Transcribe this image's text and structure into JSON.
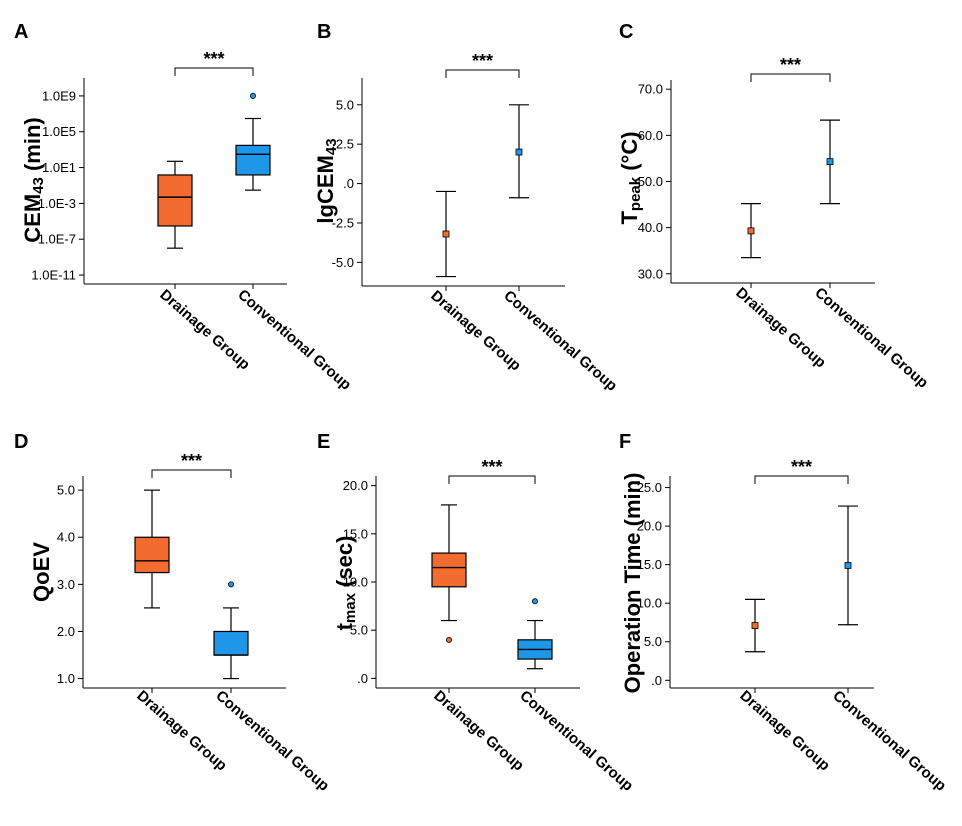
{
  "colors": {
    "drainage": "#f26b2f",
    "conventional": "#1f97e8",
    "axis": "#000000"
  },
  "chart_data": [
    {
      "panel": "A",
      "type": "box",
      "ylabel_main": "CEM",
      "ylabel_sub": "43",
      "ylabel_after": " (min)",
      "yscale": "log10",
      "ylim_exp": [
        -12,
        11
      ],
      "yticks": [
        {
          "exp": 9,
          "label": "1.0E9"
        },
        {
          "exp": 5,
          "label": "1.0E5"
        },
        {
          "exp": 1,
          "label": "1.0E1"
        },
        {
          "exp": -3,
          "label": "1.0E-3"
        },
        {
          "exp": -7,
          "label": "1.0E-7"
        },
        {
          "exp": -11,
          "label": "1.0E-11"
        }
      ],
      "categories": [
        "Drainage Group",
        "Conventional Group"
      ],
      "significance": "***",
      "boxes": [
        {
          "whisker_low": 1e-08,
          "q1": 3e-06,
          "median": 0.005,
          "q3": 1.5,
          "whisker_high": 50.0,
          "outliers": []
        },
        {
          "whisker_low": 0.03,
          "q1": 1.5,
          "median": 300.0,
          "q3": 3000.0,
          "whisker_high": 3000000.0,
          "outliers": [
            1000000000.0
          ]
        }
      ]
    },
    {
      "panel": "B",
      "type": "errorbar",
      "ylabel_main": "lgCEM",
      "ylabel_sub": "43",
      "ylabel_after": "",
      "yscale": "linear",
      "ylim": [
        -6.5,
        6.7
      ],
      "yticks": [
        {
          "value": 5,
          "label": "5.0"
        },
        {
          "value": 2.5,
          "label": "2.5"
        },
        {
          "value": 0,
          "label": ".0"
        },
        {
          "value": -2.5,
          "label": "-2.5"
        },
        {
          "value": -5,
          "label": "-5.0"
        }
      ],
      "categories": [
        "Drainage Group",
        "Conventional Group"
      ],
      "significance": "***",
      "points": [
        {
          "mean": -3.2,
          "low": -5.9,
          "high": -0.5
        },
        {
          "mean": 2.0,
          "low": -0.9,
          "high": 5.0
        }
      ]
    },
    {
      "panel": "C",
      "type": "errorbar",
      "ylabel_main": "T",
      "ylabel_sub": "peak",
      "ylabel_after": " (°C)",
      "yscale": "linear",
      "ylim": [
        28,
        72
      ],
      "yticks": [
        {
          "value": 70,
          "label": "70.0"
        },
        {
          "value": 60,
          "label": "60.0"
        },
        {
          "value": 50,
          "label": "50.0"
        },
        {
          "value": 40,
          "label": "40.0"
        },
        {
          "value": 30,
          "label": "30.0"
        }
      ],
      "categories": [
        "Drainage Group",
        "Conventional Group"
      ],
      "significance": "***",
      "points": [
        {
          "mean": 39.3,
          "low": 33.5,
          "high": 45.2
        },
        {
          "mean": 54.3,
          "low": 45.2,
          "high": 63.3
        }
      ]
    },
    {
      "panel": "D",
      "type": "box",
      "ylabel_main": "QoEV",
      "ylabel_sub": "",
      "ylabel_after": "",
      "yscale": "linear",
      "ylim": [
        0.8,
        5.3
      ],
      "yticks": [
        {
          "value": 5,
          "label": "5.0"
        },
        {
          "value": 4,
          "label": "4.0"
        },
        {
          "value": 3,
          "label": "3.0"
        },
        {
          "value": 2,
          "label": "2.0"
        },
        {
          "value": 1,
          "label": "1.0"
        }
      ],
      "categories": [
        "Drainage Group",
        "Conventional Group"
      ],
      "significance": "***",
      "boxes": [
        {
          "whisker_low": 2.5,
          "q1": 3.25,
          "median": 3.5,
          "q3": 4.0,
          "whisker_high": 5.0,
          "outliers": []
        },
        {
          "whisker_low": 1.0,
          "q1": 1.5,
          "median": 1.5,
          "q3": 2.0,
          "whisker_high": 2.5,
          "outliers": [
            3.0
          ]
        }
      ]
    },
    {
      "panel": "E",
      "type": "box",
      "ylabel_main": "t",
      "ylabel_sub": "max",
      "ylabel_after": " (sec)",
      "yscale": "linear",
      "ylim": [
        -1,
        21
      ],
      "yticks": [
        {
          "value": 20,
          "label": "20.0"
        },
        {
          "value": 15,
          "label": "15.0"
        },
        {
          "value": 10,
          "label": "10.0"
        },
        {
          "value": 5,
          "label": "5.0"
        },
        {
          "value": 0,
          "label": ".0"
        }
      ],
      "categories": [
        "Drainage Group",
        "Conventional Group"
      ],
      "significance": "***",
      "boxes": [
        {
          "whisker_low": 6,
          "q1": 9.5,
          "median": 11.5,
          "q3": 13,
          "whisker_high": 18,
          "outliers": [
            4
          ]
        },
        {
          "whisker_low": 1,
          "q1": 2,
          "median": 3,
          "q3": 4,
          "whisker_high": 6,
          "outliers": [
            8
          ]
        }
      ]
    },
    {
      "panel": "F",
      "type": "errorbar",
      "ylabel_main": "Operation Time (min)",
      "ylabel_sub": "",
      "ylabel_after": "",
      "yscale": "linear",
      "ylim": [
        -1,
        26.5
      ],
      "yticks": [
        {
          "value": 25,
          "label": "25.0"
        },
        {
          "value": 20,
          "label": "20.0"
        },
        {
          "value": 15,
          "label": "15.0"
        },
        {
          "value": 10,
          "label": "10.0"
        },
        {
          "value": 5,
          "label": "5.0"
        },
        {
          "value": 0,
          "label": ".0"
        }
      ],
      "categories": [
        "Drainage Group",
        "Conventional Group"
      ],
      "significance": "***",
      "points": [
        {
          "mean": 7.1,
          "low": 3.7,
          "high": 10.5
        },
        {
          "mean": 14.9,
          "low": 7.2,
          "high": 22.6
        }
      ]
    }
  ]
}
